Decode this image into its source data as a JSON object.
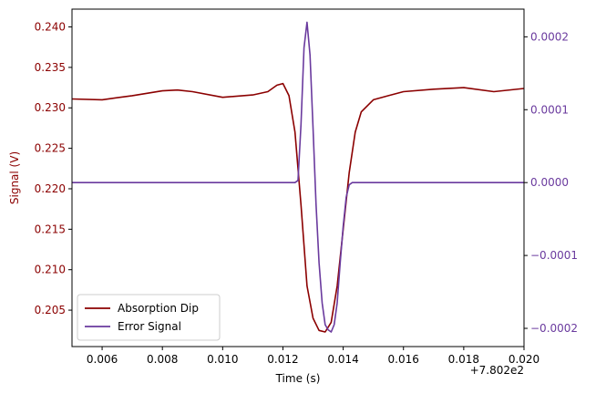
{
  "chart_data": {
    "type": "line",
    "xlabel": "Time (s)",
    "x_offset_label": "+7.802e2",
    "ylabel_left": "Signal (V)",
    "ylabel_right": "",
    "xlim": [
      0.005,
      0.02
    ],
    "ylim_left": [
      0.2005,
      0.2422
    ],
    "ylim_right": [
      -0.000225,
      0.000238
    ],
    "x_ticks": [
      0.006,
      0.008,
      0.01,
      0.012,
      0.014,
      0.016,
      0.018,
      0.02
    ],
    "x_tick_labels": [
      "0.006",
      "0.008",
      "0.010",
      "0.012",
      "0.014",
      "0.016",
      "0.018",
      "0.020"
    ],
    "y_left_ticks": [
      0.205,
      0.21,
      0.215,
      0.22,
      0.225,
      0.23,
      0.235,
      0.24
    ],
    "y_left_tick_labels": [
      "0.205",
      "0.210",
      "0.215",
      "0.220",
      "0.225",
      "0.230",
      "0.235",
      "0.240"
    ],
    "y_right_ticks": [
      -0.0002,
      -0.0001,
      0.0,
      0.0001,
      0.0002
    ],
    "y_right_tick_labels": [
      "−0.0002",
      "−0.0001",
      "0.0000",
      "0.0001",
      "0.0002"
    ],
    "grid": false,
    "legend_position": "lower-left",
    "left_axis_color": "#8b0000",
    "right_axis_color": "#6a3a9e",
    "series": [
      {
        "name": "Absorption Dip",
        "axis": "left",
        "color": "#8b0000",
        "x": [
          0.005,
          0.006,
          0.007,
          0.008,
          0.0085,
          0.009,
          0.01,
          0.011,
          0.0115,
          0.0118,
          0.012,
          0.0122,
          0.0124,
          0.0126,
          0.0128,
          0.013,
          0.0132,
          0.0134,
          0.0136,
          0.0138,
          0.014,
          0.0142,
          0.0144,
          0.0146,
          0.015,
          0.0155,
          0.016,
          0.017,
          0.018,
          0.019,
          0.02
        ],
        "y": [
          0.2311,
          0.231,
          0.2315,
          0.2321,
          0.2322,
          0.232,
          0.2313,
          0.2316,
          0.232,
          0.2328,
          0.233,
          0.2315,
          0.227,
          0.218,
          0.208,
          0.204,
          0.2025,
          0.2023,
          0.2035,
          0.208,
          0.215,
          0.222,
          0.227,
          0.2295,
          0.231,
          0.2315,
          0.232,
          0.2323,
          0.2325,
          0.232,
          0.2324
        ]
      },
      {
        "name": "Error Signal",
        "axis": "right",
        "color": "#6a3a9e",
        "x": [
          0.005,
          0.008,
          0.011,
          0.012,
          0.0124,
          0.0125,
          0.0126,
          0.0127,
          0.0128,
          0.0129,
          0.013,
          0.0131,
          0.0132,
          0.0133,
          0.0134,
          0.0135,
          0.0136,
          0.0137,
          0.0138,
          0.0139,
          0.014,
          0.0141,
          0.0142,
          0.0143,
          0.0145,
          0.016,
          0.018,
          0.02
        ],
        "y": [
          0.0,
          0.0,
          0.0,
          0.0,
          0.0,
          3e-06,
          8e-05,
          0.000185,
          0.00022,
          0.000175,
          7.5e-05,
          -3e-05,
          -0.00011,
          -0.000165,
          -0.000195,
          -0.000202,
          -0.000205,
          -0.000195,
          -0.000165,
          -0.00011,
          -6e-05,
          -2e-05,
          -3e-06,
          0.0,
          0.0,
          0.0,
          0.0,
          0.0
        ]
      }
    ]
  }
}
